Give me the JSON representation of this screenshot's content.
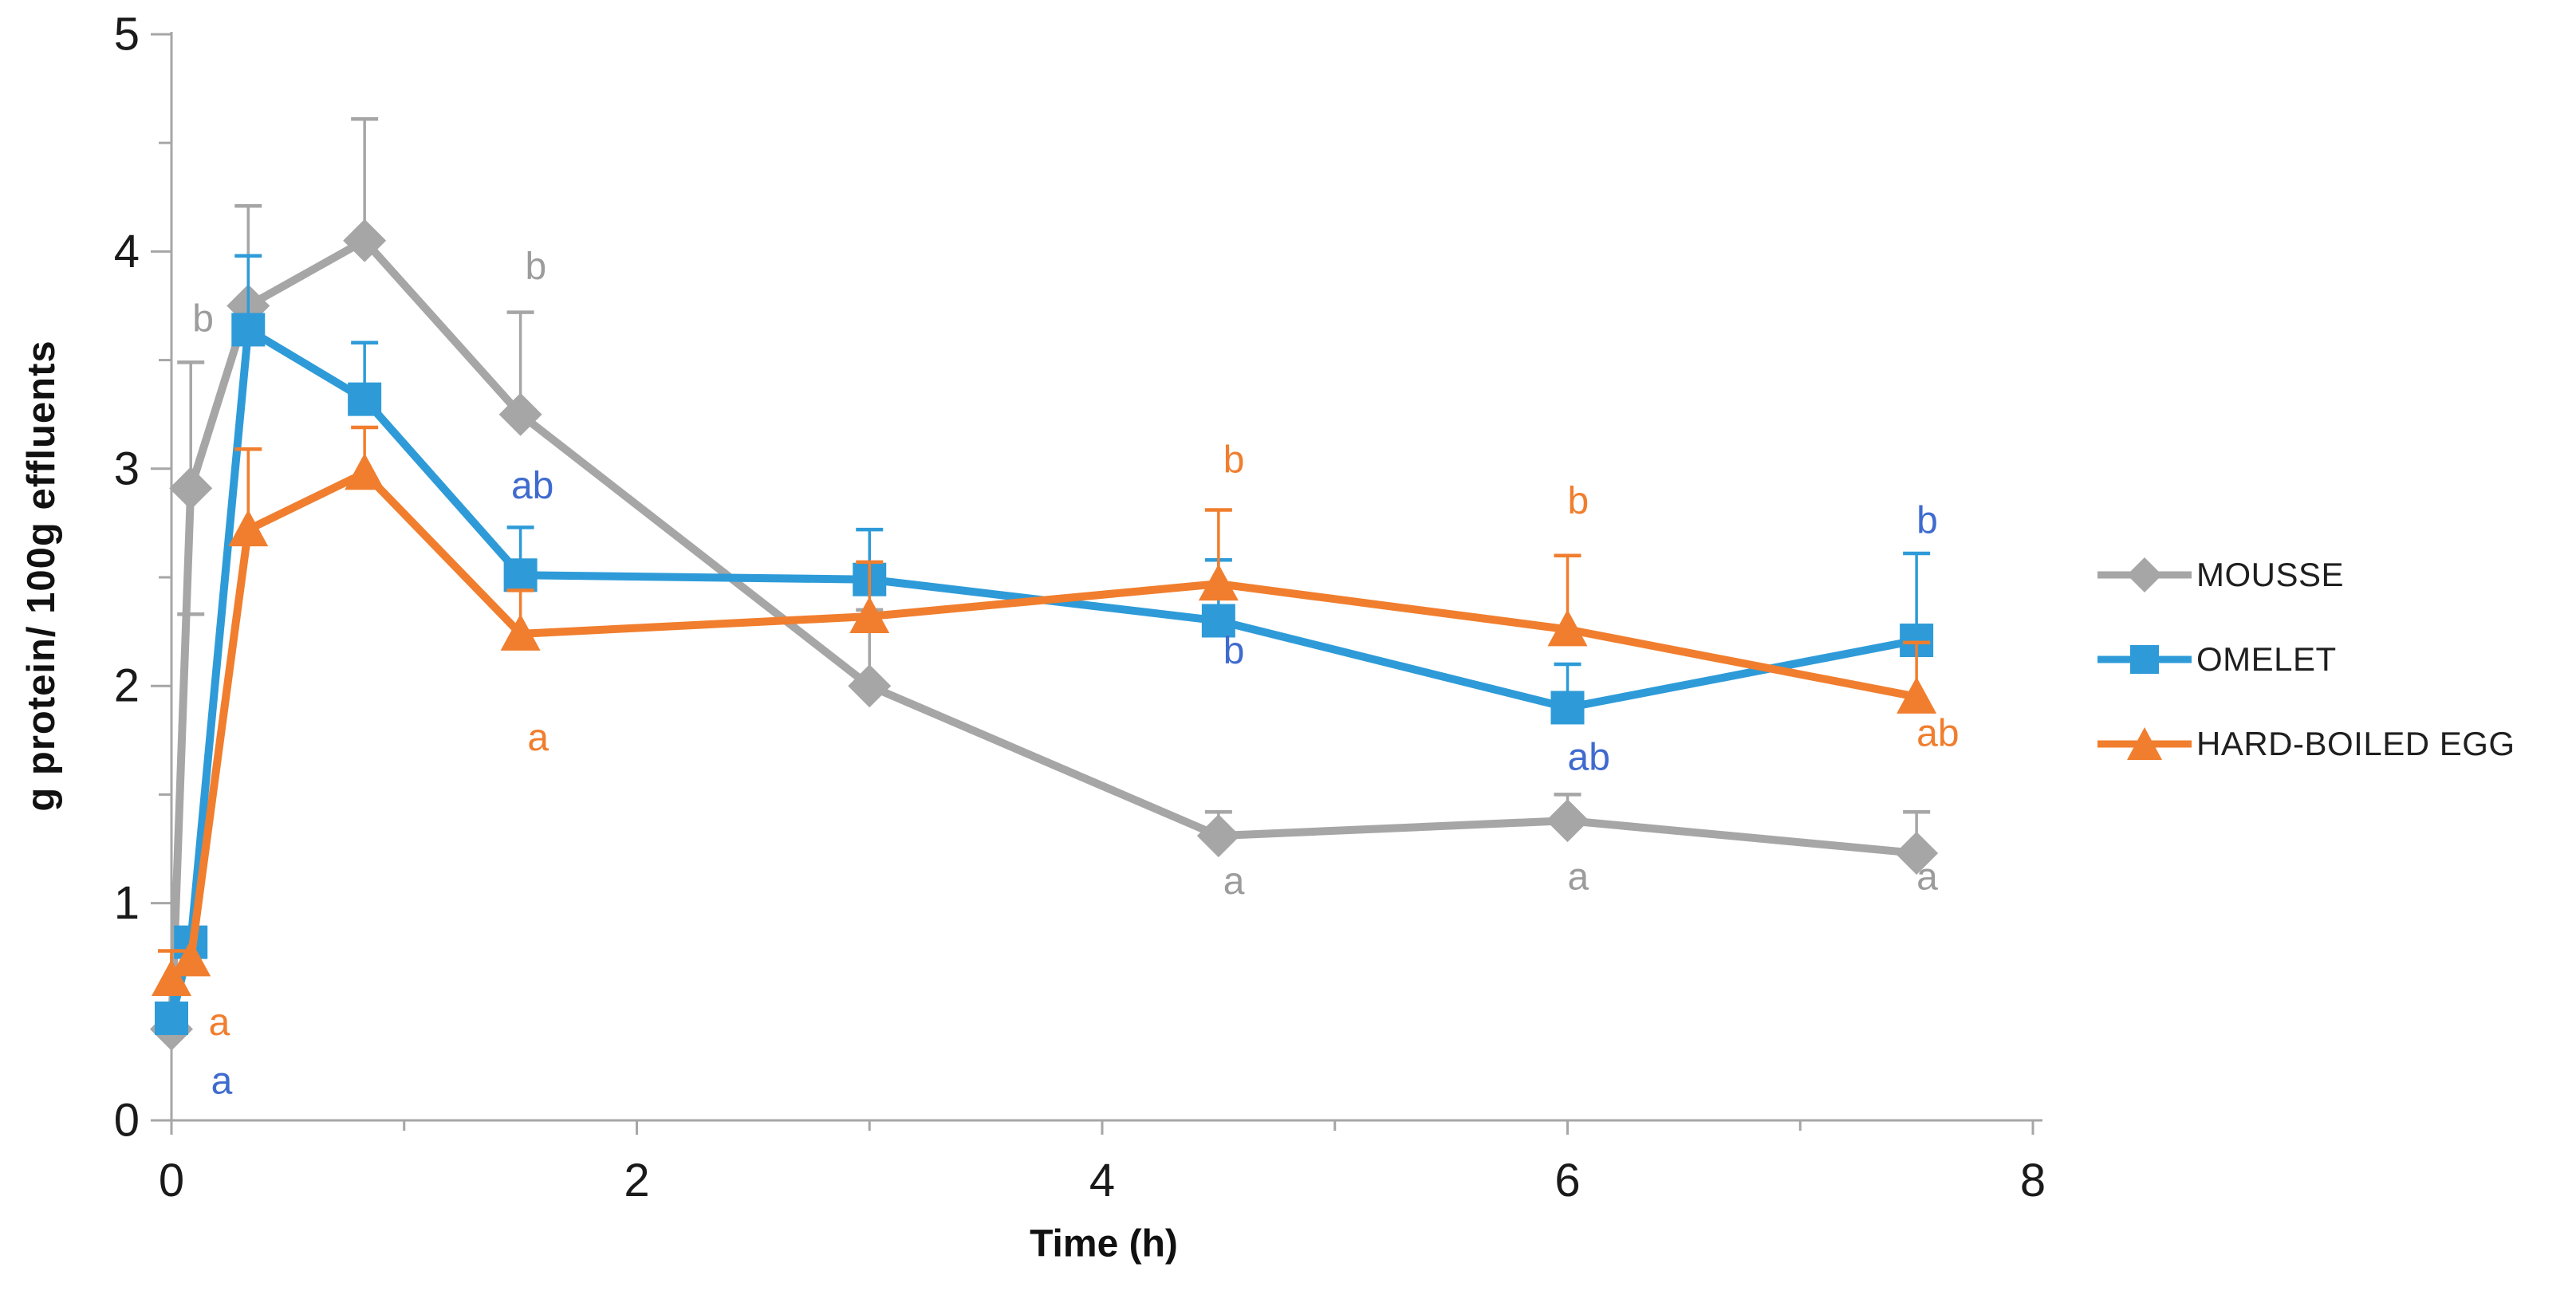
{
  "chart_data": {
    "type": "line",
    "title": "",
    "xlabel": "Time (h)",
    "ylabel": "g protein/ 100g effluents",
    "xlim": [
      0,
      8
    ],
    "ylim": [
      0,
      5
    ],
    "x_tick_labels": [
      0,
      2,
      4,
      6,
      8
    ],
    "x_minor_tick_step": 1,
    "y_tick_labels": [
      0,
      1,
      2,
      3,
      4,
      5
    ],
    "y_minor_tick_step": 0.5,
    "grid": false,
    "legend_position": "right-center",
    "axis_color": "#A6A6A6",
    "tick_label_color": "#1a1a1a",
    "x": [
      0,
      0.083,
      0.33,
      0.83,
      1.5,
      3,
      4.5,
      6,
      7.5
    ],
    "series": [
      {
        "name": "MOUSSE",
        "color": "#A6A6A6",
        "marker": "diamond",
        "values": [
          0.42,
          2.91,
          3.75,
          4.05,
          3.25,
          2.0,
          1.31,
          1.38,
          1.23
        ],
        "err_up": [
          0,
          0.58,
          0.46,
          0.56,
          0.47,
          0.35,
          0.11,
          0.12,
          0.19
        ],
        "err_down": [
          0,
          0.58,
          0,
          0,
          0,
          0,
          0,
          0,
          0
        ]
      },
      {
        "name": "OMELET",
        "color": "#2E9BD8",
        "marker": "square",
        "values": [
          0.47,
          0.82,
          3.64,
          3.32,
          2.51,
          2.49,
          2.3,
          1.9,
          2.21
        ],
        "err_up": [
          0.12,
          0,
          0.34,
          0.26,
          0.22,
          0.23,
          0.28,
          0.2,
          0.4
        ],
        "err_down": [
          0,
          0,
          0,
          0,
          0,
          0,
          0,
          0,
          0
        ]
      },
      {
        "name": "HARD-BOILED EGG",
        "color": "#F07E2E",
        "marker": "triangle",
        "values": [
          0.65,
          0.74,
          2.72,
          2.98,
          2.24,
          2.32,
          2.47,
          2.26,
          1.95
        ],
        "err_up": [
          0.13,
          0,
          0.37,
          0.21,
          0.2,
          0.25,
          0.34,
          0.34,
          0.25
        ],
        "err_down": [
          0,
          0,
          0,
          0,
          0,
          0,
          0,
          0,
          0
        ]
      }
    ],
    "annotations": [
      {
        "text": "b",
        "x": 0.09,
        "y": 3.69,
        "color": "#9C9C9C"
      },
      {
        "text": "a",
        "x": 0.16,
        "y": 0.45,
        "color": "#F07E2E"
      },
      {
        "text": "a",
        "x": 0.17,
        "y": 0.18,
        "color": "#3F6BCE"
      },
      {
        "text": "b",
        "x": 1.52,
        "y": 3.93,
        "color": "#9C9C9C"
      },
      {
        "text": "ab",
        "x": 1.46,
        "y": 2.92,
        "color": "#3F6BCE"
      },
      {
        "text": "a",
        "x": 1.53,
        "y": 1.76,
        "color": "#F07E2E"
      },
      {
        "text": "b",
        "x": 4.52,
        "y": 3.04,
        "color": "#F07E2E"
      },
      {
        "text": "b",
        "x": 4.52,
        "y": 2.16,
        "color": "#3F6BCE"
      },
      {
        "text": "a",
        "x": 4.52,
        "y": 1.1,
        "color": "#9C9C9C"
      },
      {
        "text": "b",
        "x": 6.0,
        "y": 2.85,
        "color": "#F07E2E"
      },
      {
        "text": "ab",
        "x": 6.0,
        "y": 1.67,
        "color": "#3F6BCE"
      },
      {
        "text": "a",
        "x": 6.0,
        "y": 1.12,
        "color": "#9C9C9C"
      },
      {
        "text": "b",
        "x": 7.5,
        "y": 2.76,
        "color": "#3F6BCE"
      },
      {
        "text": "ab",
        "x": 7.5,
        "y": 1.78,
        "color": "#F07E2E"
      },
      {
        "text": "a",
        "x": 7.5,
        "y": 1.12,
        "color": "#9C9C9C"
      }
    ]
  },
  "legend": {
    "items": [
      {
        "label": "MOUSSE"
      },
      {
        "label": "OMELET"
      },
      {
        "label": "HARD-BOILED EGG"
      }
    ]
  },
  "axes": {
    "x_title": "Time (h)",
    "y_title": "g protein/ 100g effluents"
  }
}
